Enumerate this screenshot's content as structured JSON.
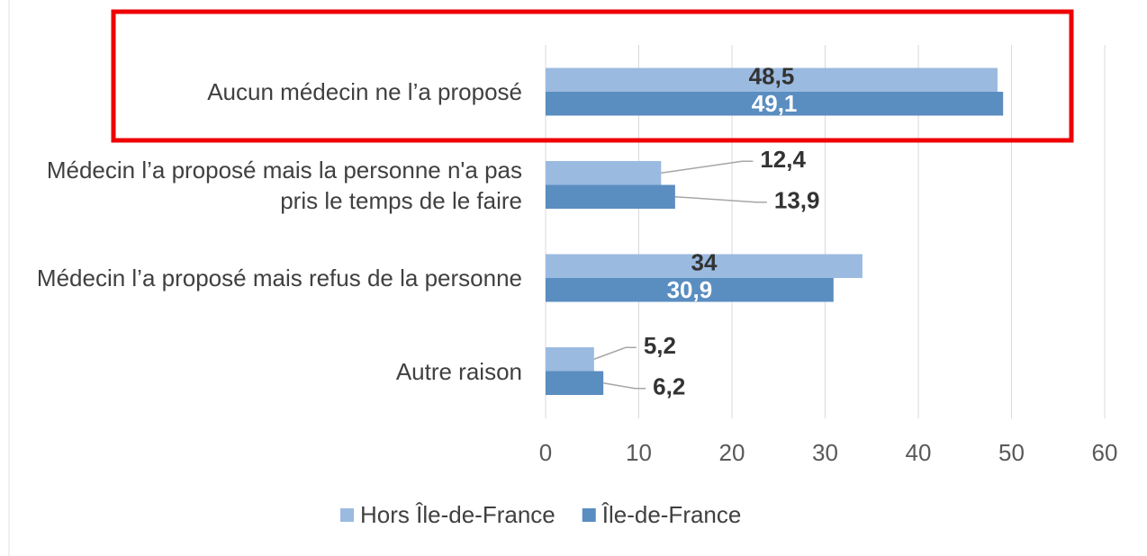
{
  "chart_data": {
    "type": "hbar",
    "categories": [
      "Aucun médecin ne l’a proposé",
      "Médecin l’a proposé mais la personne n'a pas pris le temps de le faire",
      "Médecin l’a proposé mais refus de la personne",
      "Autre raison"
    ],
    "series": [
      {
        "name": "Hors Île-de-France",
        "color": "#9bbae0",
        "values": [
          48.5,
          12.4,
          34,
          5.2
        ],
        "value_labels": [
          "48,5",
          "12,4",
          "34",
          "5,2"
        ]
      },
      {
        "name": "Île-de-France",
        "color": "#5a8dc0",
        "values": [
          49.1,
          13.9,
          30.9,
          6.2
        ],
        "value_labels": [
          "49,1",
          "13,9",
          "30,9",
          "6,2"
        ]
      }
    ],
    "xlim": [
      0,
      60
    ],
    "xticks": [
      0,
      10,
      20,
      30,
      40,
      50,
      60
    ],
    "grid": true,
    "legend": "bottom"
  }
}
